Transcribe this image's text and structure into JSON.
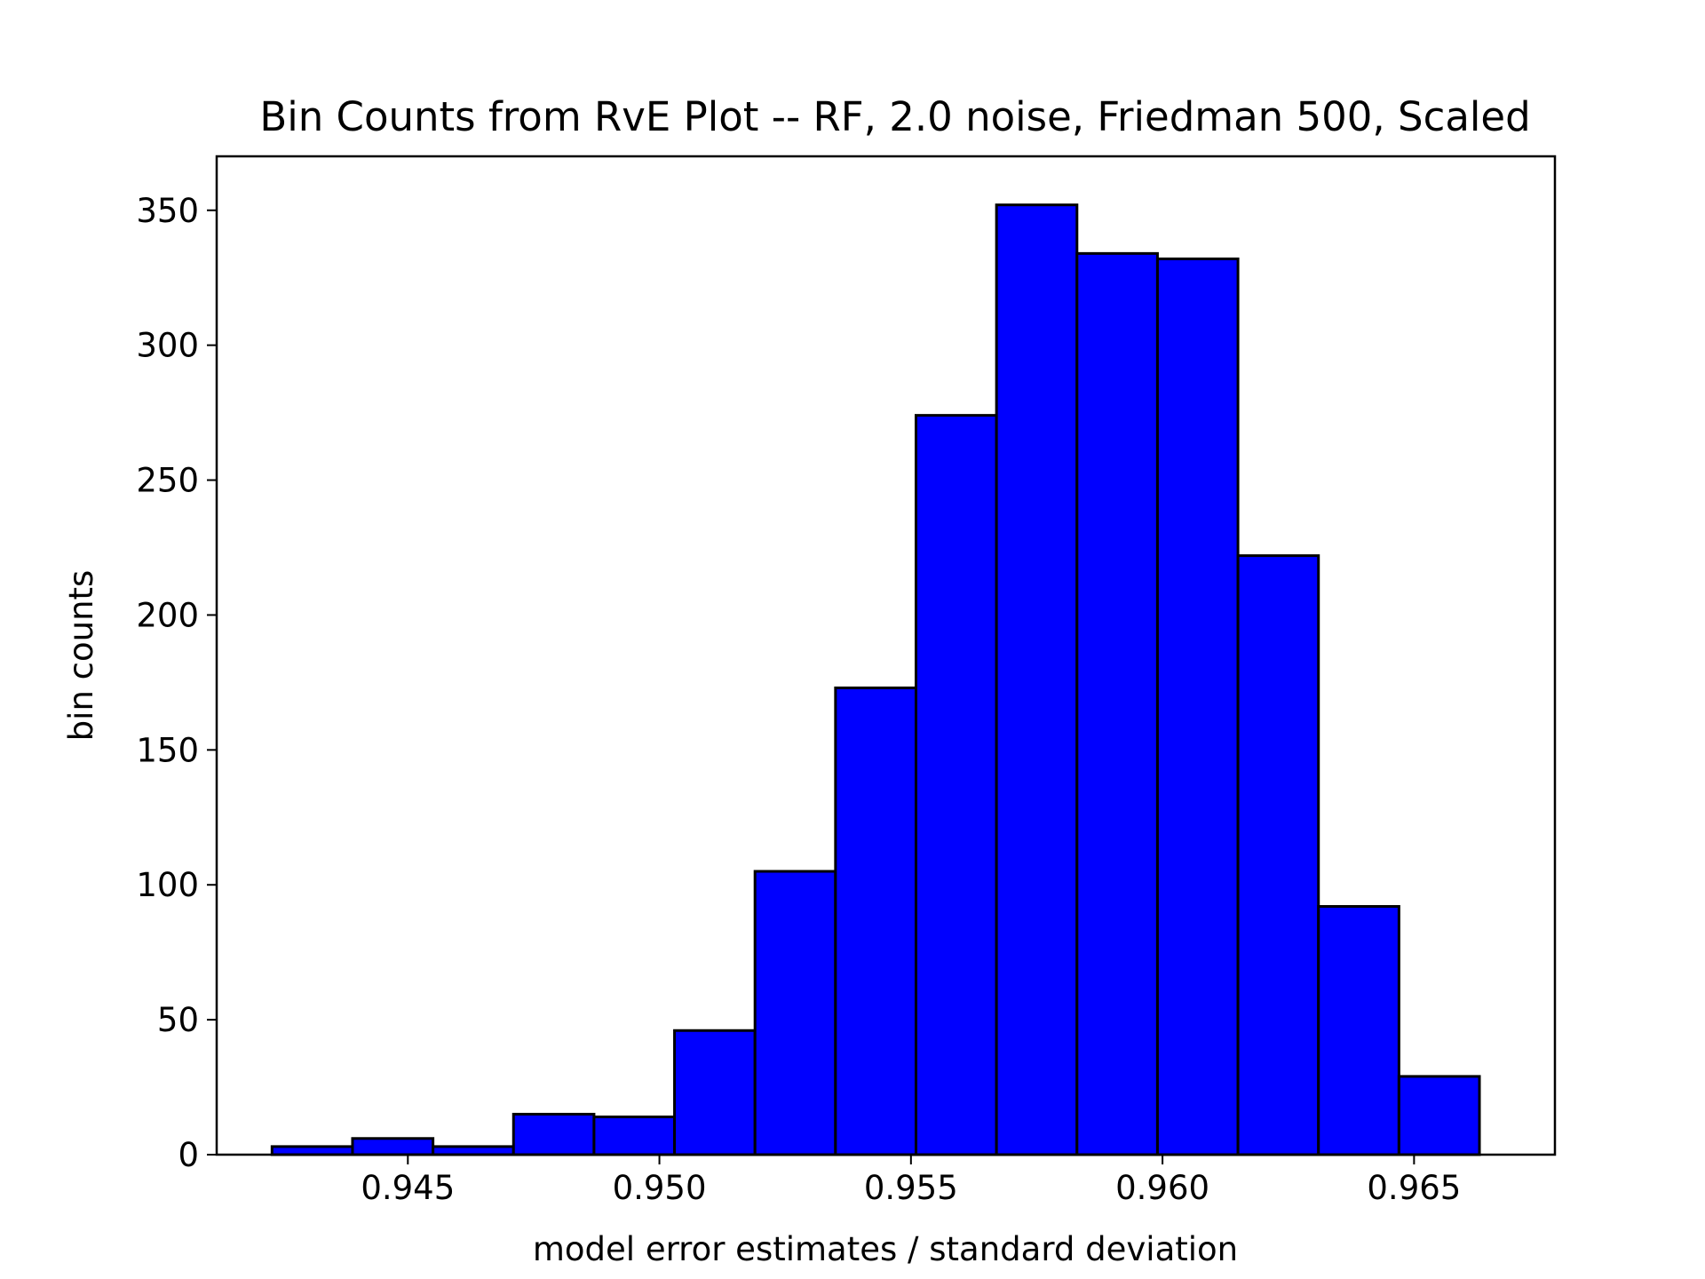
{
  "chart_data": {
    "type": "bar",
    "title": "Bin Counts from RvE Plot -- RF, 2.0 noise, Friedman 500, Scaled",
    "xlabel": "model error estimates / standard deviation",
    "ylabel": "bin counts",
    "bar_color": "#0000ff",
    "edge_color": "#000000",
    "bin_edges": [
      0.9423,
      0.9439,
      0.9455,
      0.9471,
      0.9487,
      0.9503,
      0.9519,
      0.9535,
      0.9551,
      0.9567,
      0.9583,
      0.9599,
      0.9615,
      0.9631,
      0.9647,
      0.9663
    ],
    "values": [
      3,
      6,
      3,
      15,
      14,
      46,
      105,
      173,
      274,
      352,
      334,
      332,
      222,
      92,
      29
    ],
    "xlim": [
      0.9412,
      0.9678
    ],
    "ylim": [
      0,
      370
    ],
    "x_ticks": [
      0.945,
      0.95,
      0.955,
      0.96,
      0.965
    ],
    "x_tick_labels": [
      "0.945",
      "0.950",
      "0.955",
      "0.960",
      "0.965"
    ],
    "y_ticks": [
      0,
      50,
      100,
      150,
      200,
      250,
      300,
      350
    ],
    "y_tick_labels": [
      "0",
      "50",
      "100",
      "150",
      "200",
      "250",
      "300",
      "350"
    ],
    "grid": false,
    "legend": null
  }
}
